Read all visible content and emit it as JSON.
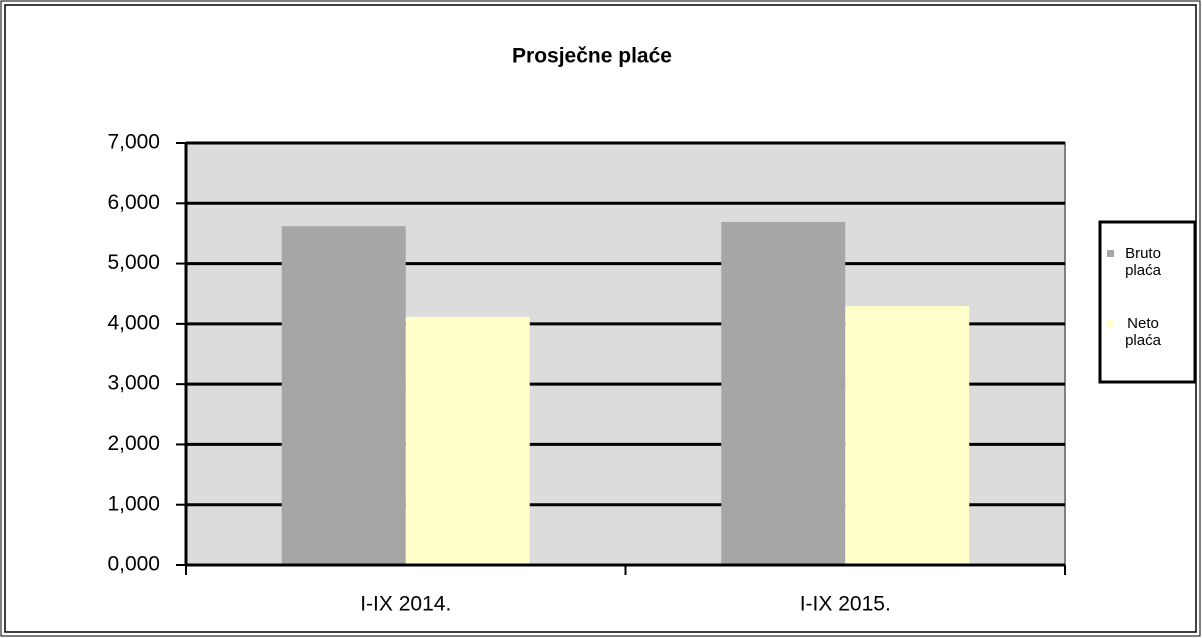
{
  "chart_data": {
    "type": "bar",
    "title": "Prosječne plaće",
    "categories": [
      "I-IX 2014.",
      "I-IX 2015."
    ],
    "series": [
      {
        "name": "Bruto plaća",
        "color": "#a6a6a6",
        "values": [
          5620,
          5690
        ]
      },
      {
        "name": "Neto plaća",
        "color": "#ffffcc",
        "values": [
          4115,
          4295
        ]
      }
    ],
    "ylim": [
      0,
      7000
    ],
    "yticks": [
      {
        "value": 0,
        "label": "0,000"
      },
      {
        "value": 1000,
        "label": "1,000"
      },
      {
        "value": 2000,
        "label": "2,000"
      },
      {
        "value": 3000,
        "label": "3,000"
      },
      {
        "value": 4000,
        "label": "4,000"
      },
      {
        "value": 5000,
        "label": "5,000"
      },
      {
        "value": 6000,
        "label": "6,000"
      },
      {
        "value": 7000,
        "label": "7,000"
      }
    ],
    "grid": true,
    "legend": "right"
  }
}
